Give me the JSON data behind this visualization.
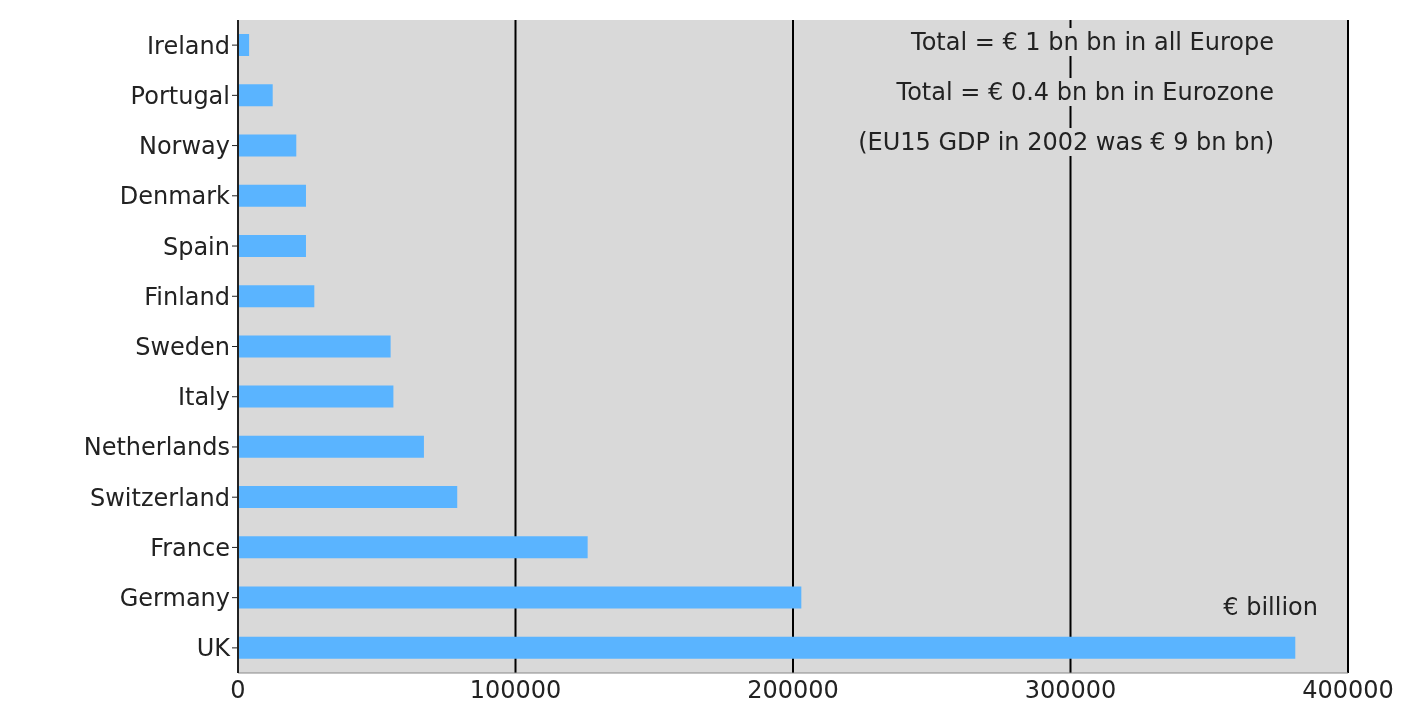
{
  "chart_data": {
    "type": "bar",
    "orientation": "horizontal",
    "categories": [
      "Ireland",
      "Portugal",
      "Norway",
      "Denmark",
      "Spain",
      "Finland",
      "Sweden",
      "Italy",
      "Netherlands",
      "Switzerland",
      "France",
      "Germany",
      "UK"
    ],
    "values": [
      4000,
      12500,
      21000,
      24500,
      24500,
      27500,
      55000,
      56000,
      67000,
      79000,
      126000,
      203000,
      381000
    ],
    "color": "#5ab4ff",
    "xlim": [
      0,
      400000
    ],
    "xticks": [
      0,
      100000,
      200000,
      300000,
      400000
    ],
    "grid": "x",
    "annotations": [
      "Total = € 1 bn bn in all Europe",
      "Total = € 0.4 bn bn in Eurozone",
      "(EU15 GDP in 2002 was € 9 bn bn)",
      "€ billion"
    ]
  }
}
